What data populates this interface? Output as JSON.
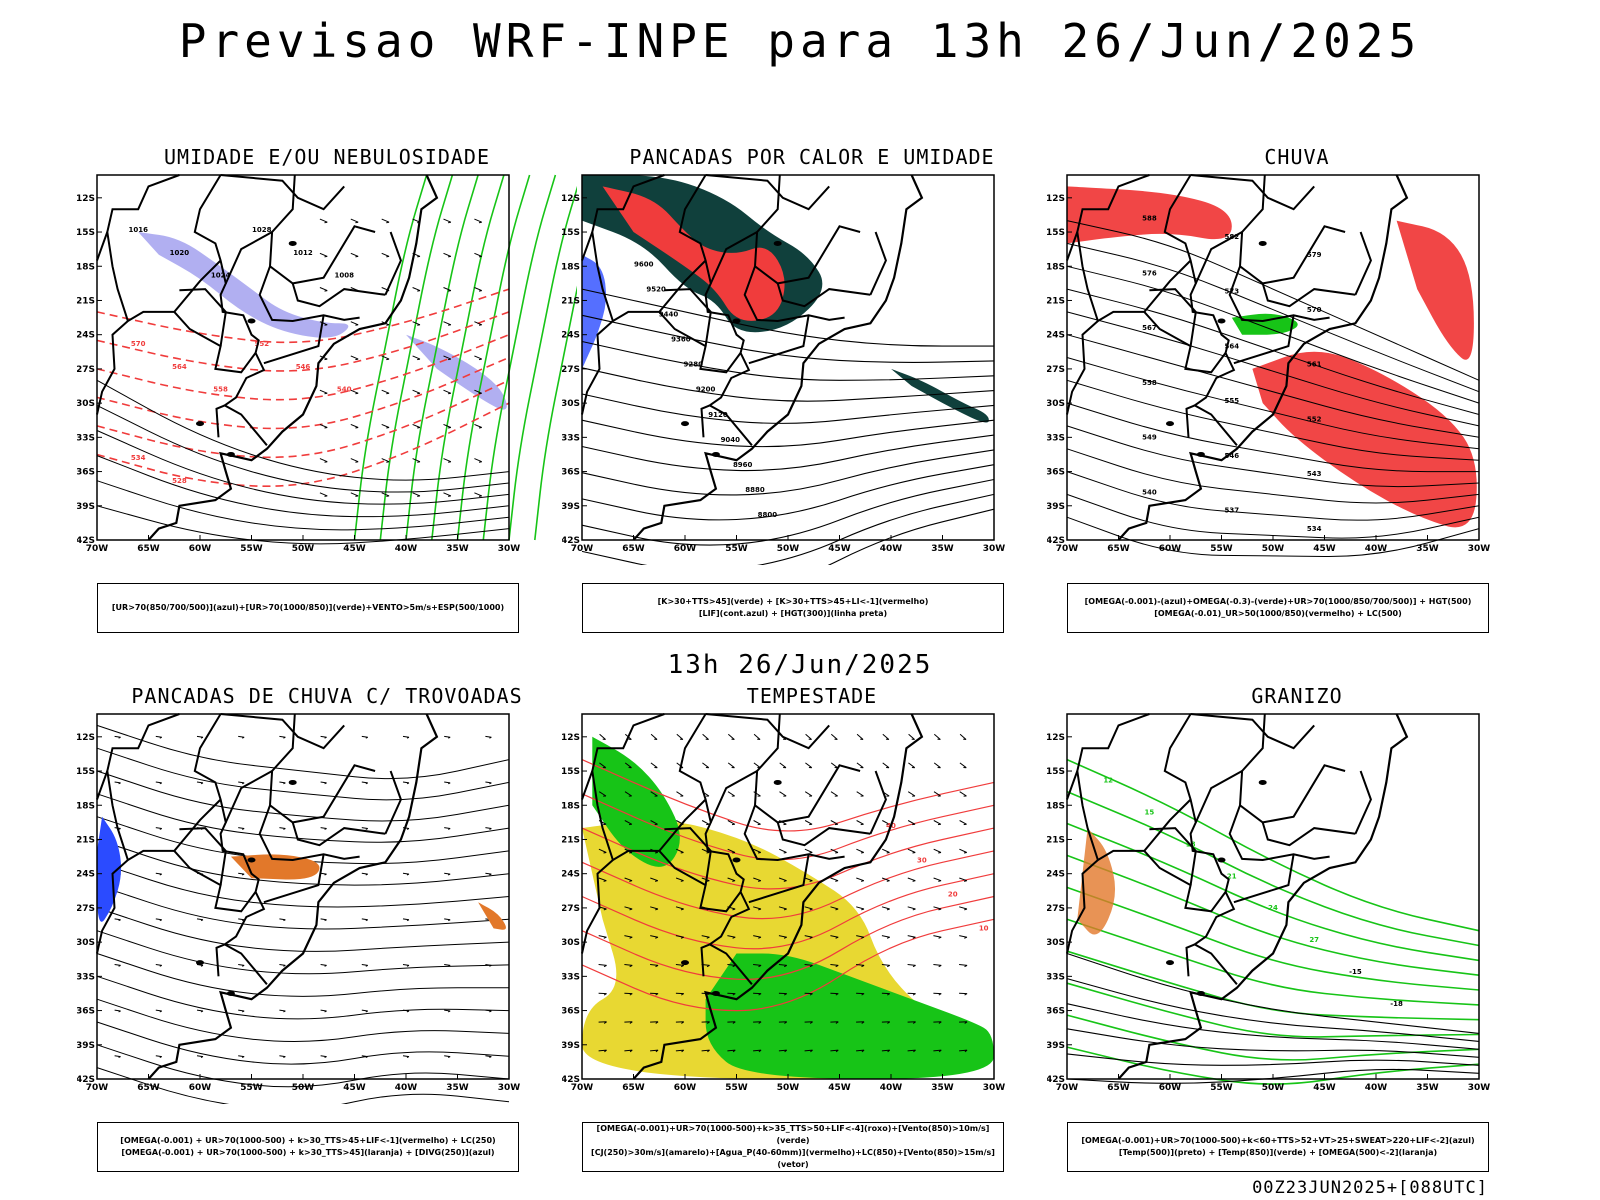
{
  "header": {
    "title": "Previsao WRF-INPE  para 13h 26/Jun/2025"
  },
  "middle": {
    "title": "13h 26/Jun/2025"
  },
  "footer": {
    "run": "00Z23JUN2025+[088UTC]"
  },
  "axes": {
    "lat_labels": [
      "12S",
      "15S",
      "18S",
      "21S",
      "24S",
      "27S",
      "30S",
      "33S",
      "36S",
      "39S",
      "42S"
    ],
    "lon_labels": [
      "70W",
      "65W",
      "60W",
      "55W",
      "50W",
      "45W",
      "40W",
      "35W",
      "30W"
    ]
  },
  "colors": {
    "red": "#f03c3c",
    "blue": "#2b4bff",
    "green": "#17c417",
    "lavender": "#a9a6f0",
    "darkteal": "#10403c",
    "yellow": "#e8d832",
    "orange": "#e2782a",
    "black": "#000000"
  },
  "panels": [
    {
      "title": "UMIDADE E/OU NEBULOSIDADE",
      "legend": [
        "[UR>70(850/700/500)](azul)+[UR>70(1000/850)](verde)+VENTO>5m/s+ESP(500/1000)"
      ],
      "labels": [
        "1016",
        "1020",
        "1024",
        "1028",
        "1012",
        "1008",
        "570",
        "564",
        "558",
        "552",
        "546",
        "540",
        "534",
        "528"
      ]
    },
    {
      "title": "PANCADAS POR CALOR E UMIDADE",
      "legend": [
        "[K>30+TTS>45](verde) + [K>30+TTS>45+LI<-1](vermelho)",
        "[LIF](cont.azul) + [HGT(300)](linha preta)"
      ],
      "labels": [
        "9600",
        "9520",
        "9440",
        "9360",
        "9280",
        "9200",
        "9120",
        "9040",
        "8960",
        "8880",
        "8800"
      ]
    },
    {
      "title": "CHUVA",
      "legend": [
        "[OMEGA(-0.001)-(azul)+OMEGA(-0.3)-(verde)+UR>70(1000/850/700/500)] + HGT(500)",
        "[OMEGA(-0.01)_UR>50(1000/850)(vermelho) + LC(500)"
      ],
      "labels": [
        "588",
        "582",
        "579",
        "576",
        "573",
        "570",
        "567",
        "564",
        "561",
        "558",
        "555",
        "552",
        "549",
        "546",
        "543",
        "540",
        "537",
        "534"
      ]
    },
    {
      "title": "PANCADAS DE CHUVA C/ TROVOADAS",
      "legend": [
        "[OMEGA(-0.001) + UR>70(1000-500) + k>30_TTS>45+LIF<-1](vermelho) + LC(250)",
        "[OMEGA(-0.001) + UR>70(1000-500) + k>30_TTS>45](laranja) + [DIVG(250)](azul)"
      ],
      "labels": []
    },
    {
      "title": "TEMPESTADE",
      "legend": [
        "[OMEGA(-0.001)+UR>70(1000-500)+k>35_TTS>50+LIF<-4](roxo)+[Vento(850)>10m/s](verde)",
        "[CJ(250)>30m/s](amarelo)+[Agua_P(40-60mm)](vermelho)+LC(850)+[Vento(850)>15m/s](vetor)"
      ],
      "labels": [
        "40",
        "30",
        "20",
        "10"
      ]
    },
    {
      "title": "GRANIZO",
      "legend": [
        "[OMEGA(-0.001)+UR>70(1000-500)+k<60+TTS>52+VT>25+SWEAT>220+LIF<-2](azul)",
        "[Temp(500)](preto) + [Temp(850)](verde) + [OMEGA(500)<-2](laranja)"
      ],
      "labels": [
        "12",
        "15",
        "18",
        "21",
        "24",
        "27",
        "-15",
        "-18"
      ]
    }
  ]
}
